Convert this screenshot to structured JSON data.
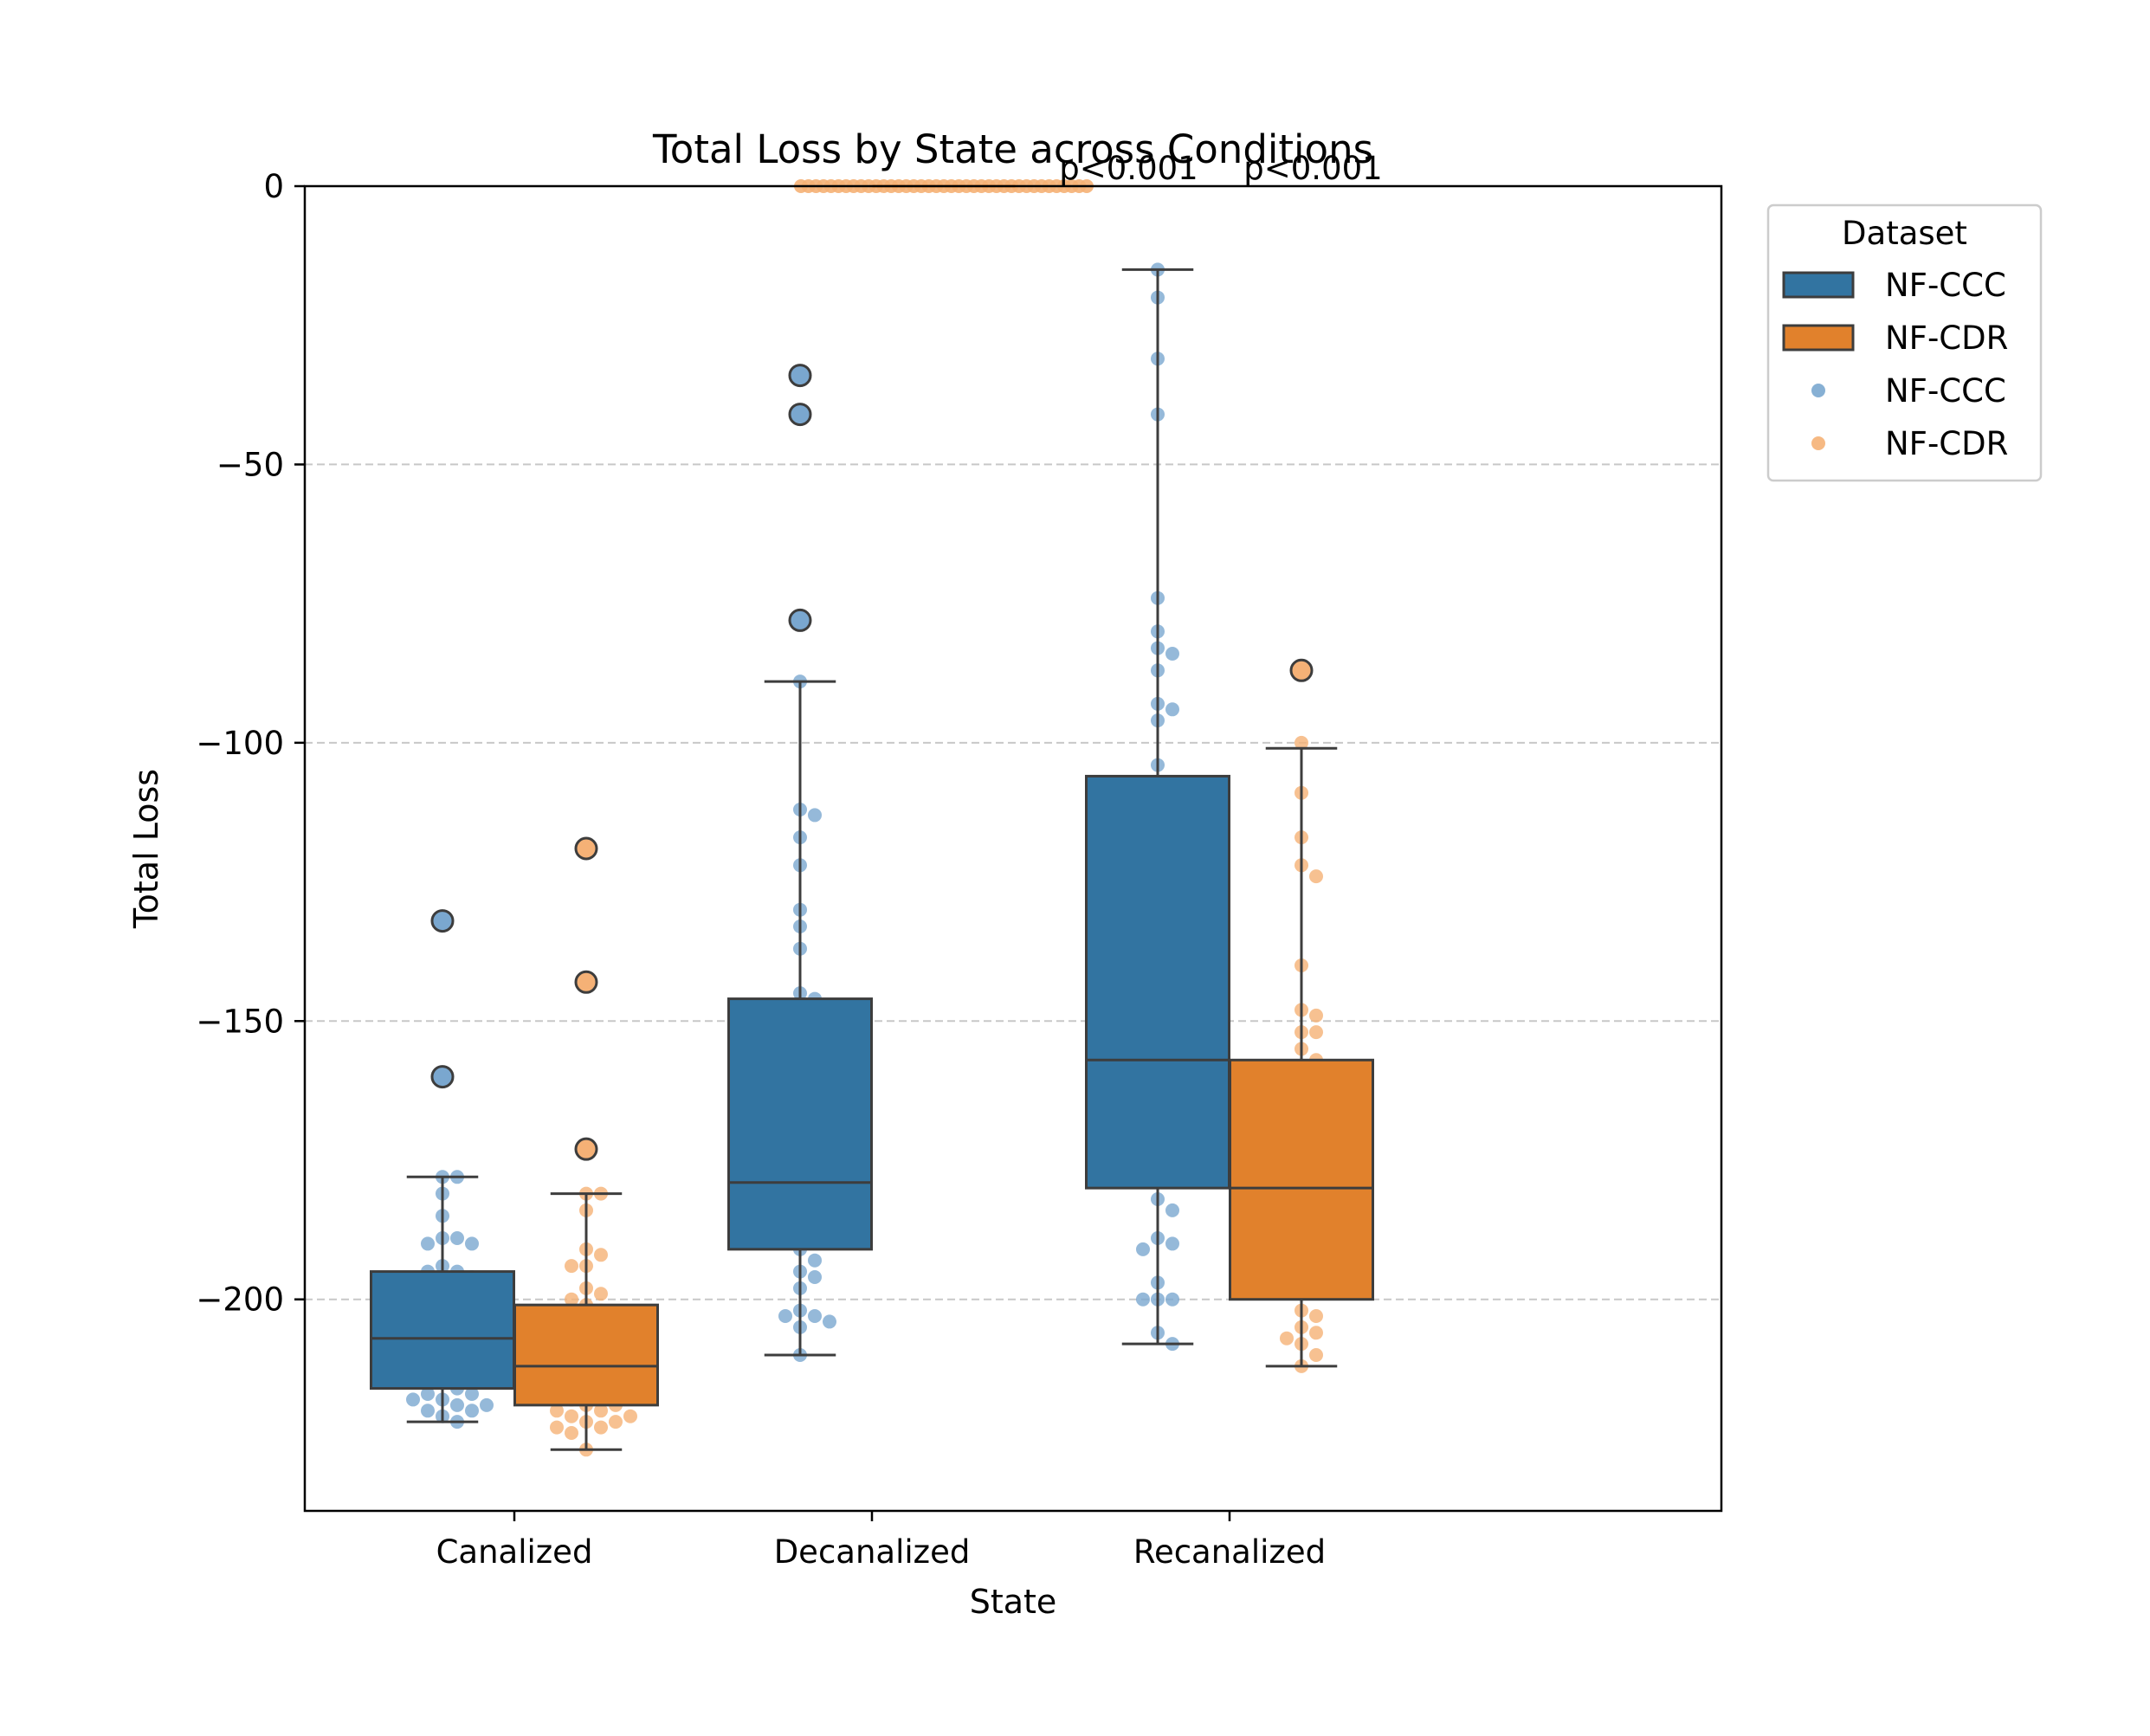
{
  "chart_data": {
    "type": "box",
    "title": "Total Loss by State across Conditions",
    "xlabel": "State",
    "ylabel": "Total Loss",
    "categories": [
      "Canalized",
      "Decanalized",
      "Recanalized"
    ],
    "ylim": [
      -238,
      0
    ],
    "yticks": [
      0,
      -50,
      -100,
      -150,
      -200
    ],
    "ytick_labels": [
      "0",
      "−50",
      "−100",
      "−150",
      "−200"
    ],
    "grid": "y-dashed",
    "legend": {
      "title": "Dataset",
      "position": "outside-top-right",
      "entries": [
        {
          "label": "NF-CCC",
          "kind": "box"
        },
        {
          "label": "NF-CDR",
          "kind": "box"
        },
        {
          "label": "NF-CCC",
          "kind": "point"
        },
        {
          "label": "NF-CDR",
          "kind": "point"
        }
      ]
    },
    "colors": {
      "NF-CCC_box": "#3274a1",
      "NF-CDR_box": "#e1812c",
      "NF-CCC_point": "#7aa7cf",
      "NF-CDR_point": "#f5b176",
      "edge": "#3d3d3d",
      "grid": "#c8c8c8"
    },
    "annotations": [
      {
        "text": "p<0.001",
        "category_pos": 2.0,
        "y": 0
      },
      {
        "text": "p<0.001",
        "category_pos": 3.0,
        "y": 0
      }
    ],
    "series": [
      {
        "name": "NF-CCC",
        "boxes": [
          {
            "category": "Canalized",
            "q1": -216,
            "median": -207,
            "q3": -195,
            "whislo": -222,
            "whishi": -178,
            "fliers": [
              -132,
              -160
            ]
          },
          {
            "category": "Decanalized",
            "q1": -191,
            "median": -179,
            "q3": -146,
            "whislo": -210,
            "whishi": -89,
            "fliers": [
              -34,
              -41,
              -78
            ]
          },
          {
            "category": "Recanalized",
            "q1": -180,
            "median": -157,
            "q3": -106,
            "whislo": -208,
            "whishi": -15,
            "fliers": []
          }
        ],
        "points": [
          {
            "category": "Canalized",
            "values": [
              -132,
              -160,
              -178,
              -178,
              -181,
              -185,
              -189,
              -189,
              -190,
              -190,
              -194,
              -195,
              -195,
              -196,
              -197,
              -198,
              -199,
              -200,
              -201,
              -202,
              -203,
              -204,
              -205,
              -206,
              -206,
              -207,
              -208,
              -209,
              -210,
              -211,
              -212,
              -213,
              -214,
              -215,
              -216,
              -217,
              -217,
              -218,
              -218,
              -219,
              -219,
              -220,
              -220,
              -221,
              -222
            ]
          },
          {
            "category": "Decanalized",
            "values": [
              -34,
              -41,
              -78,
              -89,
              -112,
              -113,
              -117,
              -122,
              -130,
              -133,
              -137,
              -145,
              -146,
              -152,
              -158,
              -163,
              -165,
              -168,
              -172,
              -176,
              -178,
              -180,
              -182,
              -184,
              -186,
              -188,
              -191,
              -193,
              -195,
              -196,
              -198,
              -202,
              -203,
              -203,
              -204,
              -205,
              -210
            ]
          },
          {
            "category": "Recanalized",
            "values": [
              -15,
              -20,
              -31,
              -41,
              -74,
              -80,
              -83,
              -84,
              -87,
              -93,
              -94,
              -96,
              -104,
              -110,
              -118,
              -125,
              -130,
              -136,
              -140,
              -145,
              -150,
              -155,
              -158,
              -162,
              -167,
              -171,
              -176,
              -182,
              -184,
              -189,
              -190,
              -191,
              -197,
              -200,
              -200,
              -200,
              -206,
              -208
            ]
          }
        ]
      },
      {
        "name": "NF-CDR",
        "boxes": [
          {
            "category": "Canalized",
            "q1": -219,
            "median": -212,
            "q3": -201,
            "whislo": -227,
            "whishi": -181,
            "fliers": [
              -119,
              -143,
              -173
            ]
          },
          {
            "category": "Decanalized",
            "q1": 0,
            "median": 0,
            "q3": 0,
            "whislo": 0,
            "whishi": 0,
            "fliers": []
          },
          {
            "category": "Recanalized",
            "q1": -200,
            "median": -180,
            "q3": -157,
            "whislo": -212,
            "whishi": -101,
            "fliers": [
              -87
            ]
          }
        ],
        "points": [
          {
            "category": "Canalized",
            "values": [
              -119,
              -143,
              -173,
              -181,
              -181,
              -184,
              -191,
              -192,
              -194,
              -194,
              -198,
              -199,
              -200,
              -201,
              -202,
              -203,
              -204,
              -205,
              -206,
              -207,
              -208,
              -209,
              -210,
              -211,
              -212,
              -213,
              -214,
              -215,
              -216,
              -217,
              -218,
              -219,
              -219,
              -220,
              -220,
              -221,
              -221,
              -222,
              -222,
              -223,
              -223,
              -224,
              -227
            ]
          },
          {
            "category": "Decanalized",
            "values": [
              0,
              0,
              0,
              0,
              0,
              0,
              0,
              0,
              0,
              0,
              0,
              0,
              0,
              0,
              0,
              0,
              0,
              0,
              0,
              0,
              0,
              0,
              0,
              0,
              0,
              0,
              0,
              0,
              0,
              0,
              0,
              0,
              0,
              0,
              0,
              0,
              0,
              0,
              0
            ]
          },
          {
            "category": "Recanalized",
            "values": [
              -87,
              -100,
              -109,
              -117,
              -122,
              -124,
              -140,
              -148,
              -149,
              -152,
              -152,
              -155,
              -157,
              -158,
              -160,
              -163,
              -166,
              -168,
              -170,
              -172,
              -175,
              -178,
              -181,
              -183,
              -185,
              -188,
              -190,
              -192,
              -194,
              -196,
              -199,
              -202,
              -203,
              -205,
              -206,
              -207,
              -208,
              -210,
              -212
            ]
          }
        ]
      }
    ]
  }
}
